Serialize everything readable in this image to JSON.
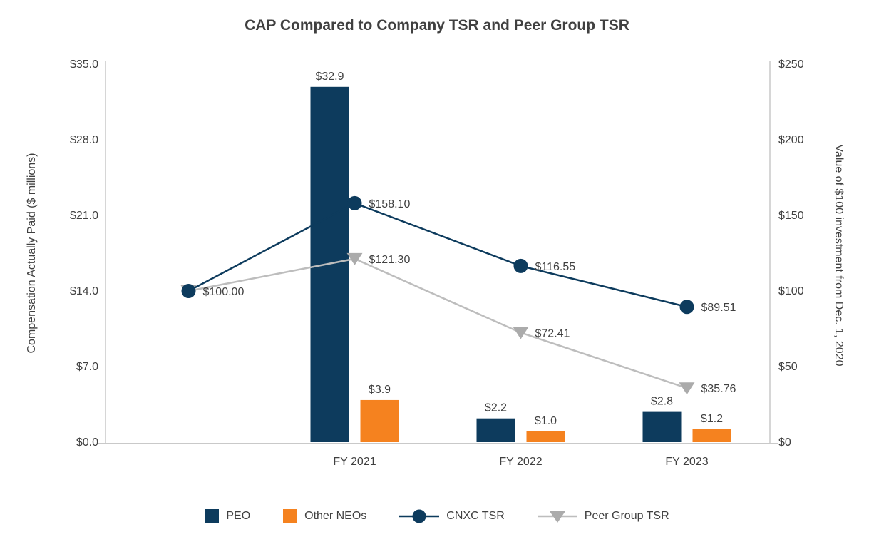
{
  "chart_data": {
    "type": "combo",
    "title": "CAP Compared to Company TSR and Peer Group TSR",
    "categories": [
      "",
      "FY 2021",
      "FY 2022",
      "FY 2023"
    ],
    "grid": false,
    "legend_position": "bottom",
    "left_axis": {
      "label": "Compensation Actually Paid ($ millions)",
      "ticks": [
        "$0.0",
        "$7.0",
        "$14.0",
        "$21.0",
        "$28.0",
        "$35.0"
      ],
      "tick_values": [
        0,
        7,
        14,
        21,
        28,
        35
      ],
      "min": 0,
      "max": 35
    },
    "right_axis": {
      "label": "Value of $100 investment from Dec. 1, 2020",
      "ticks": [
        "$0",
        "$50",
        "$100",
        "$150",
        "$200",
        "$250"
      ],
      "tick_values": [
        0,
        50,
        100,
        150,
        200,
        250
      ],
      "min": 0,
      "max": 250
    },
    "bar_series": [
      {
        "name": "PEO",
        "color": "#0D3B5D",
        "axis": "left",
        "values": [
          null,
          32.9,
          2.2,
          2.8
        ],
        "labels": [
          "",
          "$32.9",
          "$2.2",
          "$2.8"
        ]
      },
      {
        "name": "Other NEOs",
        "color": "#F5821F",
        "axis": "left",
        "values": [
          null,
          3.9,
          1.0,
          1.2
        ],
        "labels": [
          "",
          "$3.9",
          "$1.0",
          "$1.2"
        ]
      }
    ],
    "line_series": [
      {
        "name": "CNXC TSR",
        "color": "#0D3B5D",
        "marker": "circle",
        "marker_color": "#0D3B5D",
        "axis": "right",
        "values": [
          100.0,
          158.1,
          116.55,
          89.51
        ],
        "labels": [
          "$100.00",
          "$158.10",
          "$116.55",
          "$89.51"
        ]
      },
      {
        "name": "Peer Group TSR",
        "color": "#BDBDBD",
        "marker": "triangle-down",
        "marker_color": "#ABABAB",
        "axis": "right",
        "values": [
          100.0,
          121.3,
          72.41,
          35.76
        ],
        "labels": [
          "",
          "$121.30",
          "$72.41",
          "$35.76"
        ]
      }
    ],
    "legend": [
      {
        "label": "PEO",
        "type": "square",
        "color": "#0D3B5D"
      },
      {
        "label": "Other NEOs",
        "type": "square",
        "color": "#F5821F"
      },
      {
        "label": "CNXC TSR",
        "type": "line-circle",
        "color": "#0D3B5D",
        "marker_color": "#0D3B5D"
      },
      {
        "label": "Peer Group TSR",
        "type": "line-triangle",
        "color": "#BDBDBD",
        "marker_color": "#ABABAB"
      }
    ],
    "axis_line_color": "#C9C9C9",
    "text_color": "#404040"
  }
}
